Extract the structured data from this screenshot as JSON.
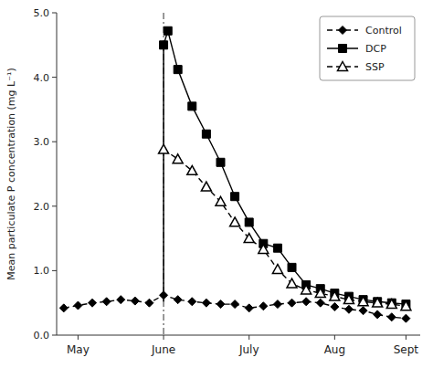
{
  "chart_data": {
    "type": "line",
    "title": "",
    "ylabel": "Mean particulate P concentration (mg L⁻¹)",
    "xlim": [
      -0.5,
      25
    ],
    "xticks": [
      {
        "value": 1,
        "label": "May"
      },
      {
        "value": 7,
        "label": "June"
      },
      {
        "value": 13,
        "label": "July"
      },
      {
        "value": 19,
        "label": "Aug"
      },
      {
        "value": 24,
        "label": "Sept"
      }
    ],
    "ylim": [
      0.0,
      5.0
    ],
    "yticks": [
      {
        "value": 0.0,
        "label": "0.0"
      },
      {
        "value": 1.0,
        "label": "1.0"
      },
      {
        "value": 2.0,
        "label": "2.0"
      },
      {
        "value": 3.0,
        "label": "3.0"
      },
      {
        "value": 4.0,
        "label": "4.0"
      },
      {
        "value": 5.0,
        "label": "5.0"
      }
    ],
    "grid": false,
    "legend": "upper right",
    "series": [
      {
        "name": "Control",
        "color": "black",
        "marker": "diamond",
        "line_style": "dashed",
        "x": [
          0,
          1,
          2,
          3,
          4,
          5,
          6,
          7,
          8,
          9,
          10,
          11,
          12,
          13,
          14,
          15,
          16,
          17,
          18,
          19,
          20,
          21,
          22,
          23,
          24
        ],
        "values": [
          0.42,
          0.46,
          0.5,
          0.52,
          0.55,
          0.53,
          0.5,
          0.62,
          0.55,
          0.52,
          0.5,
          0.48,
          0.48,
          0.42,
          0.45,
          0.48,
          0.5,
          0.52,
          0.5,
          0.44,
          0.4,
          0.38,
          0.32,
          0.28,
          0.26
        ]
      },
      {
        "name": "DCP",
        "color": "black",
        "marker": "square",
        "line_style": "solid",
        "x": [
          7,
          7.3,
          8,
          9,
          10,
          11,
          12,
          13,
          14,
          15,
          16,
          17,
          18,
          19,
          20,
          21,
          22,
          23,
          24
        ],
        "values": [
          4.5,
          4.72,
          4.12,
          3.55,
          3.12,
          2.68,
          2.15,
          1.75,
          1.42,
          1.35,
          1.05,
          0.78,
          0.72,
          0.65,
          0.6,
          0.55,
          0.52,
          0.5,
          0.48
        ]
      },
      {
        "name": "SSP",
        "color": "black",
        "marker": "triangle",
        "line_style": "dashed",
        "x": [
          7,
          8,
          9,
          10,
          11,
          12,
          13,
          14,
          15,
          16,
          17,
          18,
          19,
          20,
          21,
          22,
          23,
          24
        ],
        "values": [
          2.88,
          2.73,
          2.55,
          2.3,
          2.07,
          1.75,
          1.5,
          1.33,
          1.02,
          0.8,
          0.7,
          0.65,
          0.6,
          0.55,
          0.52,
          0.5,
          0.48,
          0.45
        ]
      }
    ],
    "connector": {
      "x": [
        7,
        7
      ],
      "values": [
        0.52,
        4.5
      ]
    },
    "vline_x": 7
  }
}
